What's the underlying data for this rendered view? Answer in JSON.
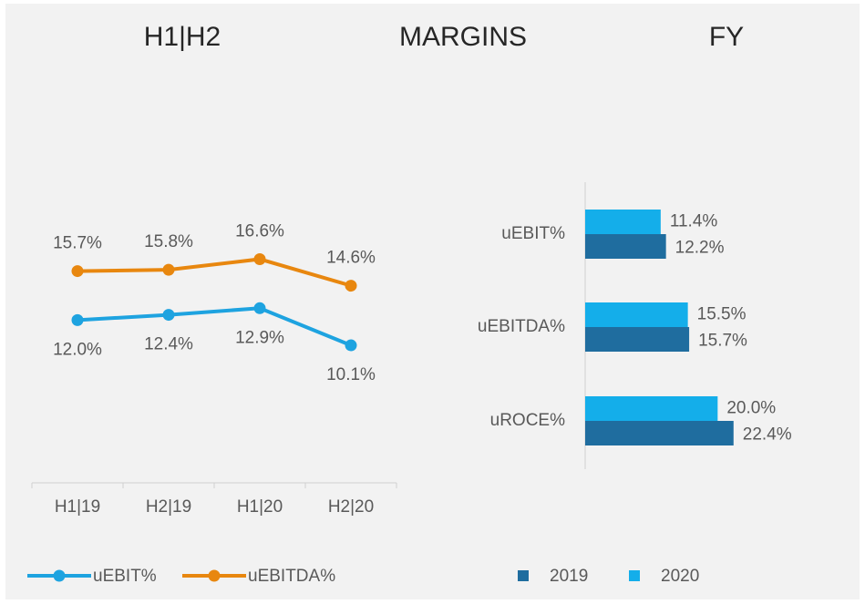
{
  "header": {
    "titles": [
      "H1|H2",
      "MARGINS",
      "FY"
    ]
  },
  "chart_data": [
    {
      "type": "line",
      "categories": [
        "H1|19",
        "H2|19",
        "H1|20",
        "H2|20"
      ],
      "series": [
        {
          "name": "uEBIT%",
          "color": "#1ea3e0",
          "values": [
            12.0,
            12.4,
            12.9,
            10.1
          ],
          "value_labels": [
            "12.0%",
            "12.4%",
            "12.9%",
            "10.1%"
          ]
        },
        {
          "name": "uEBITDA%",
          "color": "#e8870f",
          "values": [
            15.7,
            15.8,
            16.6,
            14.6
          ],
          "value_labels": [
            "15.7%",
            "15.8%",
            "16.6%",
            "14.6%"
          ]
        }
      ],
      "ylim": [
        0,
        20
      ]
    },
    {
      "type": "hbar",
      "categories": [
        "uEBIT%",
        "uEBITDA%",
        "uROCE%"
      ],
      "series": [
        {
          "name": "2019",
          "color": "#1f6d9f",
          "values": [
            12.2,
            15.7,
            22.4
          ],
          "value_labels": [
            "12.2%",
            "15.7%",
            "22.4%"
          ]
        },
        {
          "name": "2020",
          "color": "#14aeea",
          "values": [
            11.4,
            15.5,
            20.0
          ],
          "value_labels": [
            "11.4%",
            "15.5%",
            "20.0%"
          ]
        }
      ],
      "xlim": [
        0,
        30
      ]
    }
  ]
}
